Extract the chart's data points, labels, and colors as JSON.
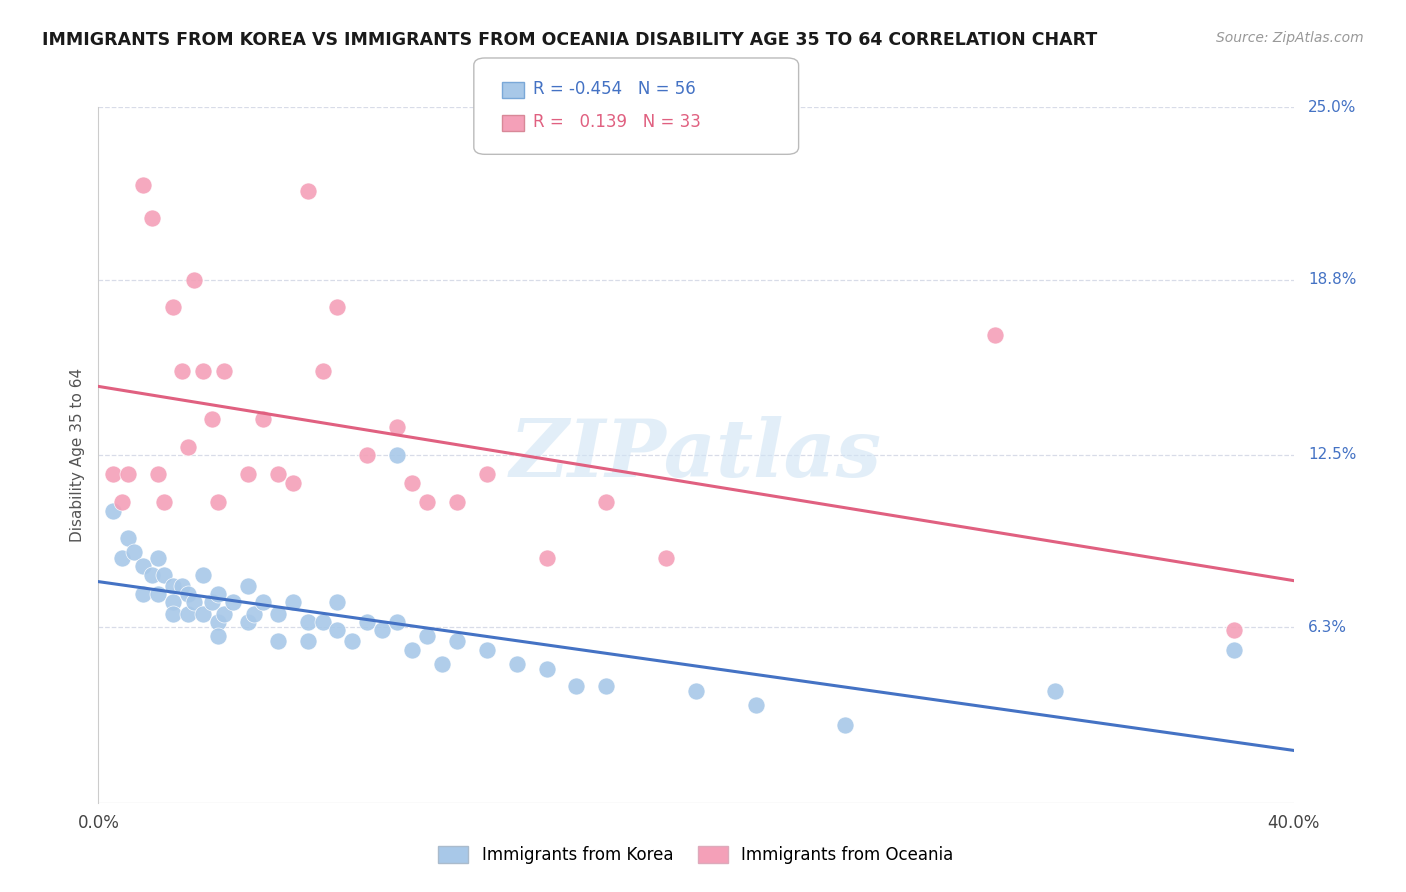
{
  "title": "IMMIGRANTS FROM KOREA VS IMMIGRANTS FROM OCEANIA DISABILITY AGE 35 TO 64 CORRELATION CHART",
  "source": "Source: ZipAtlas.com",
  "ylabel": "Disability Age 35 to 64",
  "x_min": 0.0,
  "x_max": 0.4,
  "y_min": 0.0,
  "y_max": 0.25,
  "x_ticks": [
    0.0,
    0.1,
    0.2,
    0.3,
    0.4
  ],
  "x_tick_labels": [
    "0.0%",
    "",
    "",
    "",
    "40.0%"
  ],
  "y_ticks_right": [
    0.25,
    0.188,
    0.125,
    0.063,
    0.0
  ],
  "y_tick_labels_right": [
    "25.0%",
    "18.8%",
    "12.5%",
    "6.3%",
    ""
  ],
  "korea_R": "-0.454",
  "korea_N": "56",
  "oceania_R": "0.139",
  "oceania_N": "33",
  "korea_color": "#a8c8e8",
  "korea_line_color": "#4472c4",
  "oceania_color": "#f4a0b8",
  "oceania_line_color": "#e06080",
  "watermark": "ZIPatlas",
  "korea_scatter_x": [
    0.005,
    0.008,
    0.01,
    0.012,
    0.015,
    0.015,
    0.018,
    0.02,
    0.02,
    0.022,
    0.025,
    0.025,
    0.025,
    0.028,
    0.03,
    0.03,
    0.032,
    0.035,
    0.035,
    0.038,
    0.04,
    0.04,
    0.04,
    0.042,
    0.045,
    0.05,
    0.05,
    0.052,
    0.055,
    0.06,
    0.06,
    0.065,
    0.07,
    0.07,
    0.075,
    0.08,
    0.08,
    0.085,
    0.09,
    0.095,
    0.1,
    0.1,
    0.105,
    0.11,
    0.115,
    0.12,
    0.13,
    0.14,
    0.15,
    0.16,
    0.17,
    0.2,
    0.22,
    0.25,
    0.32,
    0.38
  ],
  "korea_scatter_y": [
    0.105,
    0.088,
    0.095,
    0.09,
    0.085,
    0.075,
    0.082,
    0.088,
    0.075,
    0.082,
    0.078,
    0.072,
    0.068,
    0.078,
    0.075,
    0.068,
    0.072,
    0.082,
    0.068,
    0.072,
    0.075,
    0.065,
    0.06,
    0.068,
    0.072,
    0.078,
    0.065,
    0.068,
    0.072,
    0.068,
    0.058,
    0.072,
    0.065,
    0.058,
    0.065,
    0.072,
    0.062,
    0.058,
    0.065,
    0.062,
    0.125,
    0.065,
    0.055,
    0.06,
    0.05,
    0.058,
    0.055,
    0.05,
    0.048,
    0.042,
    0.042,
    0.04,
    0.035,
    0.028,
    0.04,
    0.055
  ],
  "oceania_scatter_x": [
    0.005,
    0.008,
    0.01,
    0.015,
    0.018,
    0.02,
    0.022,
    0.025,
    0.028,
    0.03,
    0.032,
    0.035,
    0.038,
    0.04,
    0.042,
    0.05,
    0.055,
    0.06,
    0.065,
    0.07,
    0.075,
    0.08,
    0.09,
    0.1,
    0.105,
    0.11,
    0.12,
    0.13,
    0.15,
    0.17,
    0.19,
    0.3,
    0.38
  ],
  "oceania_scatter_y": [
    0.118,
    0.108,
    0.118,
    0.222,
    0.21,
    0.118,
    0.108,
    0.178,
    0.155,
    0.128,
    0.188,
    0.155,
    0.138,
    0.108,
    0.155,
    0.118,
    0.138,
    0.118,
    0.115,
    0.22,
    0.155,
    0.178,
    0.125,
    0.135,
    0.115,
    0.108,
    0.108,
    0.118,
    0.088,
    0.108,
    0.088,
    0.168,
    0.062
  ],
  "background_color": "#ffffff",
  "grid_color": "#d8dce8"
}
